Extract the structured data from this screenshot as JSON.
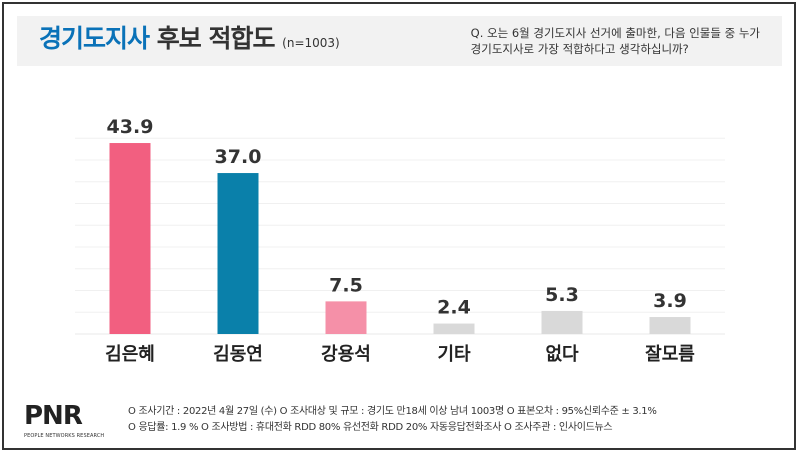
{
  "header": {
    "title_highlight": "경기도지사",
    "title_rest": "후보 적합도",
    "sample": "(n=1003)",
    "question_line1": "Q. 오는 6월 경기도지사 선거에 출마한, 다음 인물들 중 누가",
    "question_line2": "경기도지사로 가장 적합하다고 생각하십니까?"
  },
  "chart_data": {
    "type": "bar",
    "title": "경기도지사 후보 적합도",
    "categories": [
      "김은혜",
      "김동연",
      "강용석",
      "기타",
      "없다",
      "잘모름"
    ],
    "values": [
      43.9,
      37.0,
      7.5,
      2.4,
      5.3,
      3.9
    ],
    "colors": [
      "#f25f80",
      "#0a80aa",
      "#f590a8",
      "#d9d9d9",
      "#d9d9d9",
      "#d9d9d9"
    ],
    "ylim": [
      0,
      50
    ],
    "grid": true,
    "xlabel": "",
    "ylabel": ""
  },
  "footer": {
    "logo": "PNR",
    "logo_sub": "PEOPLE NETWORKS RESEARCH",
    "line1": "O 조사기간 : 2022년 4월 27일 (수)   O 조사대상 및 규모 : 경기도 만18세 이상 남녀 1003명   O 표본오차 : 95%신뢰수준 ± 3.1%",
    "line2": "O 응답률: 1.9 %   O 조사방법 : 휴대전화 RDD 80%  유선전화 RDD 20% 자동응답전화조사   O 조사주관 : 인사이드뉴스"
  }
}
